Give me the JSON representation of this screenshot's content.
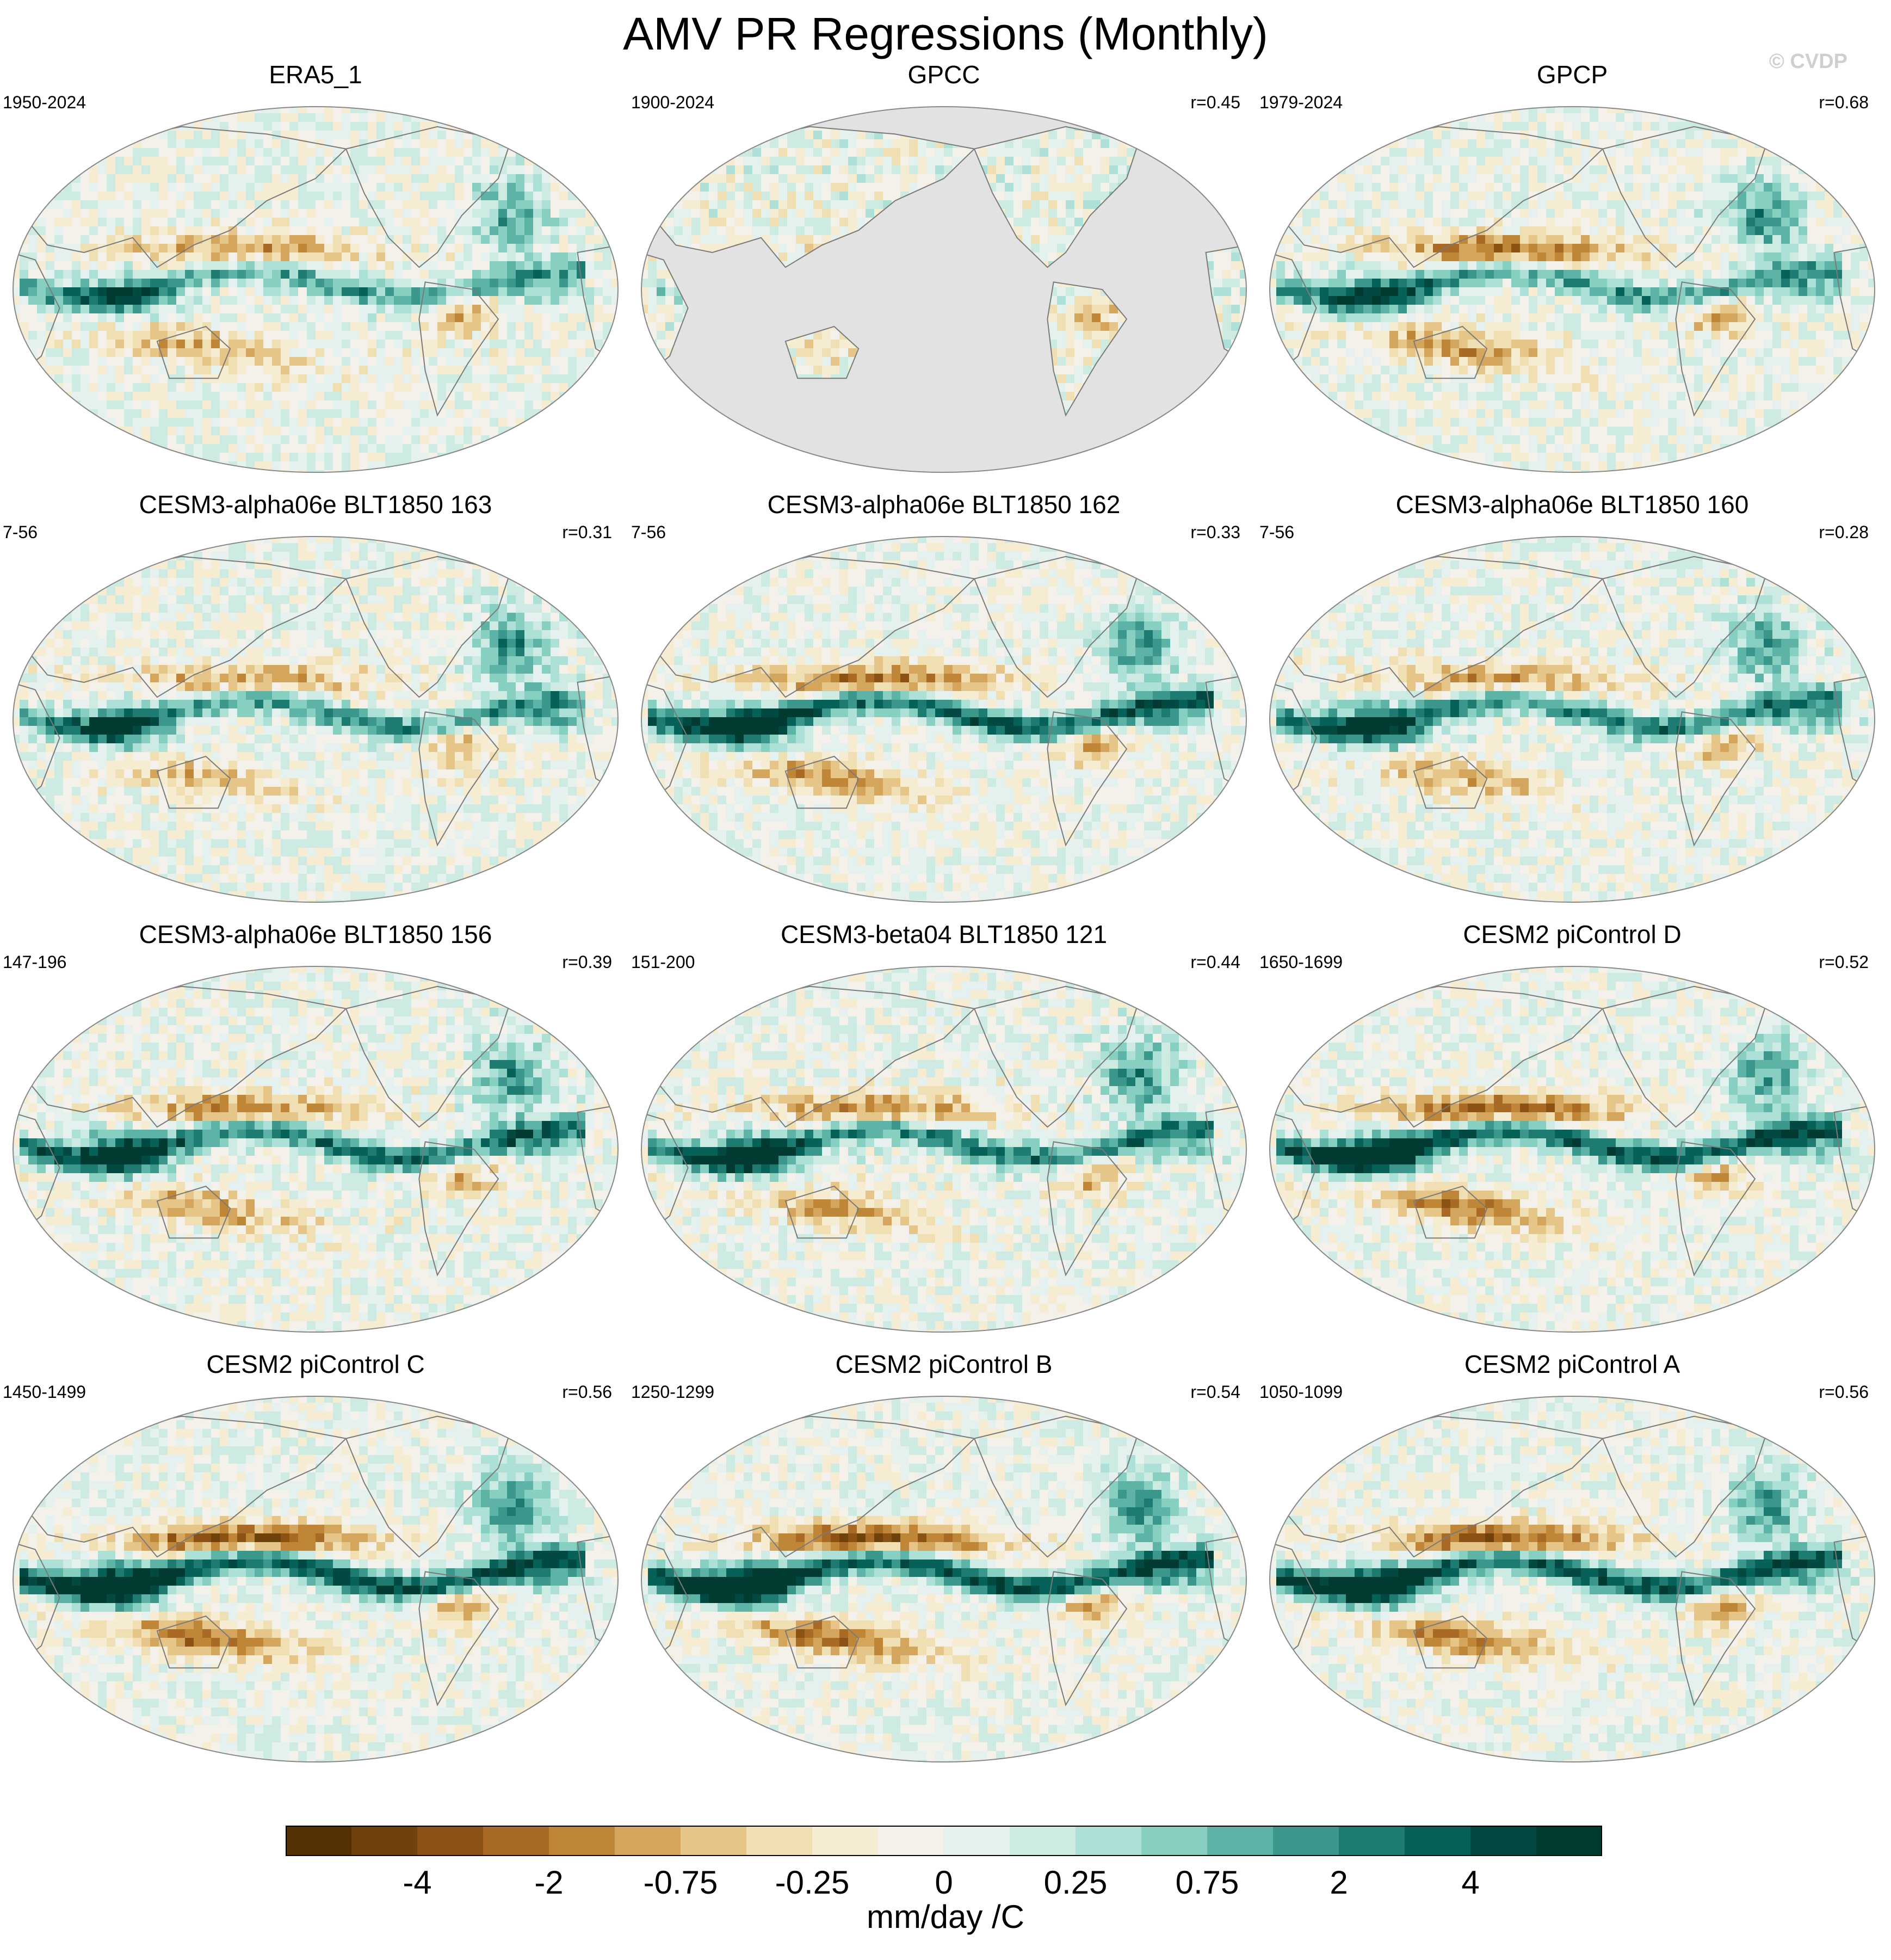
{
  "title": "AMV PR Regressions (Monthly)",
  "watermark": "© CVDP",
  "colorbar": {
    "units": "mm/day /C",
    "tick_labels": [
      "-4",
      "-2",
      "-0.75",
      "-0.25",
      "0",
      "0.25",
      "0.75",
      "2",
      "4"
    ],
    "colors": [
      "#543005",
      "#6f410b",
      "#8c5214",
      "#a86a24",
      "#bf8638",
      "#d4a55c",
      "#e5c688",
      "#f1dfb4",
      "#f6ecd2",
      "#f4f1eb",
      "#e5f1ee",
      "#cdebe3",
      "#ade0d6",
      "#86cfc1",
      "#5db3a6",
      "#3b968b",
      "#1d7b71",
      "#066258",
      "#024a41",
      "#013a30"
    ]
  },
  "chart_data": [
    {
      "type": "heatmap",
      "title": "ERA5_1",
      "period": "1950-2024",
      "corr": "",
      "land_only": false,
      "pattern": {
        "itcz": 0.55,
        "side": -0.55,
        "wp": 0.4,
        "atl": 0.5,
        "noise": 0.35
      }
    },
    {
      "type": "heatmap",
      "title": "GPCC",
      "period": "1900-2024",
      "corr": "r=0.45",
      "land_only": true,
      "pattern": {
        "itcz": 0.2,
        "side": -0.2,
        "wp": 0.2,
        "atl": 0.3,
        "noise": 0.4
      }
    },
    {
      "type": "heatmap",
      "title": "GPCP",
      "period": "1979-2024",
      "corr": "r=0.68",
      "land_only": false,
      "pattern": {
        "itcz": 0.6,
        "side": -0.7,
        "wp": 0.5,
        "atl": 0.6,
        "noise": 0.35
      }
    },
    {
      "type": "heatmap",
      "title": "CESM3-alpha06e BLT1850 163",
      "period": "7-56",
      "corr": "r=0.31",
      "land_only": false,
      "pattern": {
        "itcz": 0.6,
        "side": -0.5,
        "wp": 0.5,
        "atl": 0.6,
        "noise": 0.35
      }
    },
    {
      "type": "heatmap",
      "title": "CESM3-alpha06e BLT1850 162",
      "period": "7-56",
      "corr": "r=0.33",
      "land_only": false,
      "pattern": {
        "itcz": 0.85,
        "side": -0.7,
        "wp": 0.6,
        "atl": 0.6,
        "noise": 0.3
      }
    },
    {
      "type": "heatmap",
      "title": "CESM3-alpha06e BLT1850 160",
      "period": "7-56",
      "corr": "r=0.28",
      "land_only": false,
      "pattern": {
        "itcz": 0.7,
        "side": -0.55,
        "wp": 0.55,
        "atl": 0.55,
        "noise": 0.35
      }
    },
    {
      "type": "heatmap",
      "title": "CESM3-alpha06e BLT1850 156",
      "period": "147-196",
      "corr": "r=0.39",
      "land_only": false,
      "pattern": {
        "itcz": 0.75,
        "side": -0.6,
        "wp": 0.6,
        "atl": 0.6,
        "noise": 0.35
      }
    },
    {
      "type": "heatmap",
      "title": "CESM3-beta04 BLT1850 121",
      "period": "151-200",
      "corr": "r=0.44",
      "land_only": false,
      "pattern": {
        "itcz": 0.7,
        "side": -0.6,
        "wp": 0.6,
        "atl": 0.6,
        "noise": 0.35
      }
    },
    {
      "type": "heatmap",
      "title": "CESM2 piControl D",
      "period": "1650-1699",
      "corr": "r=0.52",
      "land_only": false,
      "pattern": {
        "itcz": 0.9,
        "side": -0.8,
        "wp": 0.7,
        "atl": 0.55,
        "noise": 0.3
      }
    },
    {
      "type": "heatmap",
      "title": "CESM2 piControl C",
      "period": "1450-1499",
      "corr": "r=0.56",
      "land_only": false,
      "pattern": {
        "itcz": 0.95,
        "side": -0.85,
        "wp": 0.75,
        "atl": 0.6,
        "noise": 0.3
      }
    },
    {
      "type": "heatmap",
      "title": "CESM2 piControl B",
      "period": "1250-1299",
      "corr": "r=0.54",
      "land_only": false,
      "pattern": {
        "itcz": 0.95,
        "side": -0.85,
        "wp": 0.75,
        "atl": 0.6,
        "noise": 0.3
      }
    },
    {
      "type": "heatmap",
      "title": "CESM2 piControl A",
      "period": "1050-1099",
      "corr": "r=0.56",
      "land_only": false,
      "pattern": {
        "itcz": 0.9,
        "side": -0.8,
        "wp": 0.7,
        "atl": 0.55,
        "noise": 0.3
      }
    }
  ]
}
